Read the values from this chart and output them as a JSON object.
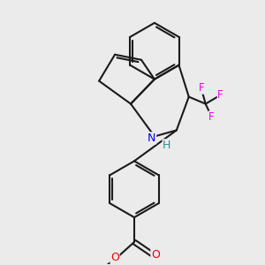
{
  "background_color": "#ebebeb",
  "bond_color": "#1a1a1a",
  "N_color": "#0000ee",
  "H_color": "#2a9090",
  "O_color": "#ee0000",
  "F_color": "#ee00ee",
  "lw": 1.5,
  "figsize": [
    3.0,
    3.0
  ],
  "dpi": 100,
  "atoms": {
    "N": {
      "color": "#0000ee"
    },
    "H": {
      "color": "#2a9090"
    },
    "O": {
      "color": "#ee0000"
    },
    "F": {
      "color": "#ee00ee"
    }
  }
}
